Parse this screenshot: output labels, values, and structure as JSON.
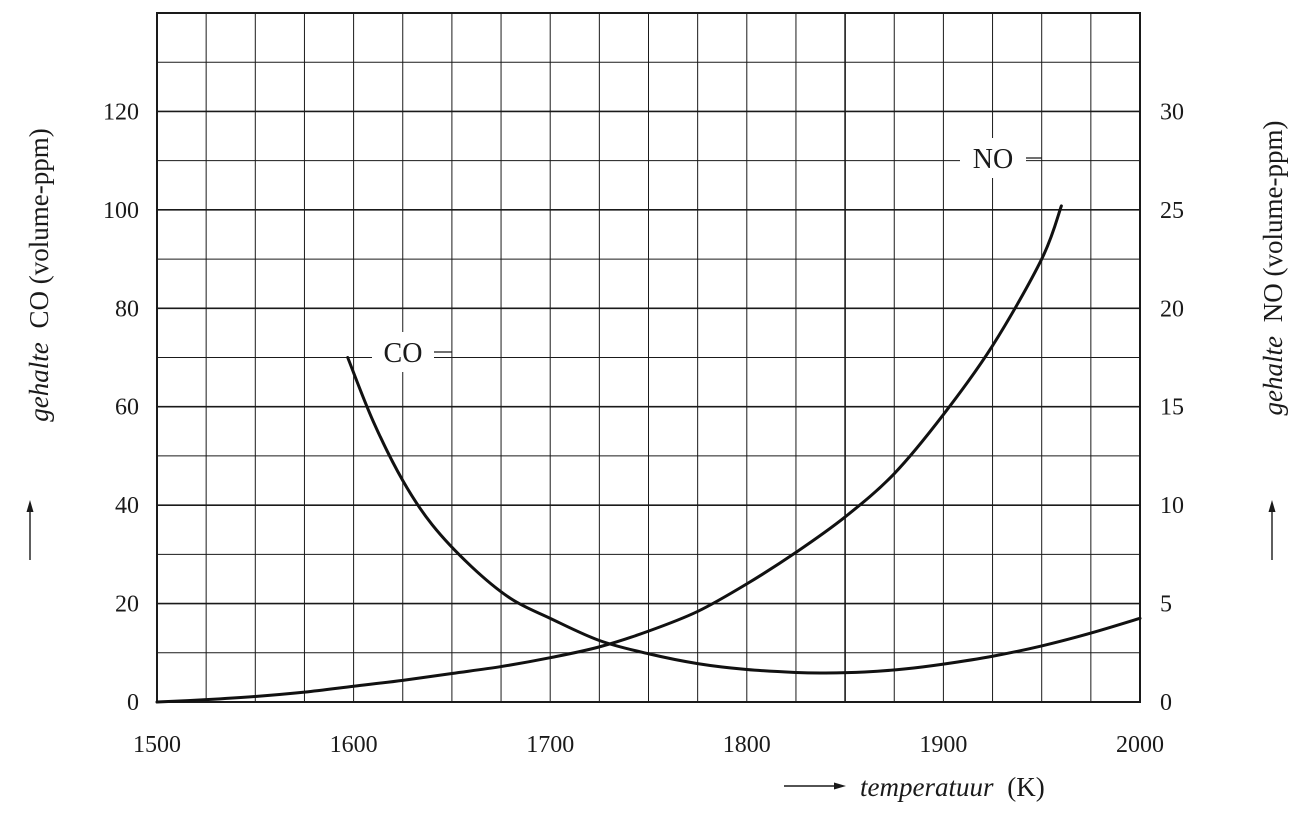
{
  "chart_data": {
    "type": "line",
    "x_axis": {
      "title_italic": "temperatuur",
      "title_unit": "(K)",
      "range": [
        1500,
        2000
      ],
      "tick_labels": [
        "1500",
        "1600",
        "1700",
        "1800",
        "1900",
        "2000"
      ],
      "minor_step": 25
    },
    "y_axis_left": {
      "title_italic": "gehalte",
      "title_rest": "CO (volume-ppm)",
      "range": [
        0,
        140
      ],
      "tick_values": [
        0,
        20,
        40,
        60,
        80,
        100,
        120
      ],
      "tick_labels": [
        "0",
        "20",
        "40",
        "60",
        "80",
        "100",
        "120"
      ],
      "minor_step": 10
    },
    "y_axis_right": {
      "title_italic": "gehalte",
      "title_rest": "NO (volume-ppm)",
      "range": [
        0,
        35
      ],
      "tick_values": [
        0,
        5,
        10,
        15,
        20,
        25,
        30
      ],
      "tick_labels": [
        "0",
        "5",
        "10",
        "15",
        "20",
        "25",
        "30"
      ]
    },
    "grid": true,
    "series": [
      {
        "name": "CO",
        "axis": "left",
        "x": [
          1597,
          1610,
          1625,
          1640,
          1660,
          1680,
          1700,
          1725,
          1750,
          1775,
          1800,
          1825,
          1840,
          1860,
          1880,
          1900,
          1925,
          1950,
          1975,
          2000
        ],
        "y": [
          70,
          57,
          45,
          36,
          27.5,
          21,
          17,
          12.5,
          9.8,
          7.8,
          6.6,
          6,
          5.9,
          6.1,
          6.7,
          7.7,
          9.3,
          11.4,
          14,
          17
        ]
      },
      {
        "name": "NO",
        "axis": "right",
        "x": [
          1500,
          1525,
          1550,
          1575,
          1600,
          1625,
          1650,
          1675,
          1700,
          1725,
          1750,
          1775,
          1800,
          1825,
          1850,
          1875,
          1900,
          1925,
          1950,
          1960
        ],
        "y": [
          0,
          0.12,
          0.28,
          0.5,
          0.8,
          1.1,
          1.45,
          1.8,
          2.25,
          2.8,
          3.6,
          4.6,
          6,
          7.6,
          9.4,
          11.6,
          14.6,
          18.1,
          22.5,
          25.2
        ]
      }
    ],
    "annotations": [
      {
        "text": "CO",
        "series": "CO"
      },
      {
        "text": "NO",
        "series": "NO"
      }
    ]
  }
}
